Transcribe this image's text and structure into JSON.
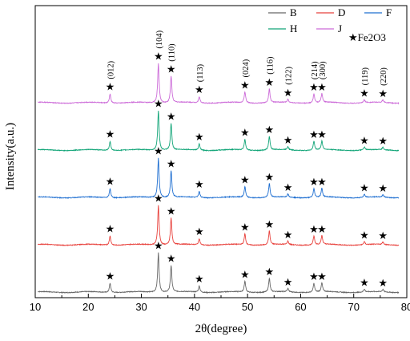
{
  "chart_data": {
    "type": "line",
    "title": "",
    "xlabel": "2θ(degree)",
    "ylabel": "Intensity(a.u.)",
    "xlim": [
      10,
      80
    ],
    "xticks": [
      10,
      20,
      30,
      40,
      50,
      60,
      70,
      80
    ],
    "grid": false,
    "legend_position": "top-right",
    "series": [
      {
        "name": "B",
        "color": "#666666",
        "baseline": 0.0
      },
      {
        "name": "D",
        "color": "#e8413c",
        "baseline": 1.0
      },
      {
        "name": "F",
        "color": "#1f6fd1",
        "baseline": 2.0
      },
      {
        "name": "H",
        "color": "#12a578",
        "baseline": 3.0
      },
      {
        "name": "J",
        "color": "#cc6bd8",
        "baseline": 4.0
      }
    ],
    "peaks": [
      {
        "two_theta": 24.1,
        "hkl": "(012)",
        "height": 0.22
      },
      {
        "two_theta": 33.2,
        "hkl": "(104)",
        "height": 0.95
      },
      {
        "two_theta": 35.6,
        "hkl": "(110)",
        "height": 0.64
      },
      {
        "two_theta": 40.9,
        "hkl": "(113)",
        "height": 0.15
      },
      {
        "two_theta": 49.5,
        "hkl": "(024)",
        "height": 0.26
      },
      {
        "two_theta": 54.1,
        "hkl": "(116)",
        "height": 0.33
      },
      {
        "two_theta": 57.6,
        "hkl": "(122)",
        "height": 0.08
      },
      {
        "two_theta": 62.5,
        "hkl": "(214)",
        "height": 0.21
      },
      {
        "two_theta": 64.0,
        "hkl": "(300)",
        "height": 0.21
      },
      {
        "two_theta": 72.0,
        "hkl": "(119)",
        "height": 0.07
      },
      {
        "two_theta": 75.5,
        "hkl": "(220)",
        "height": 0.06
      }
    ],
    "marker_legend": {
      "symbol": "★",
      "label": "Fe2O3"
    }
  }
}
